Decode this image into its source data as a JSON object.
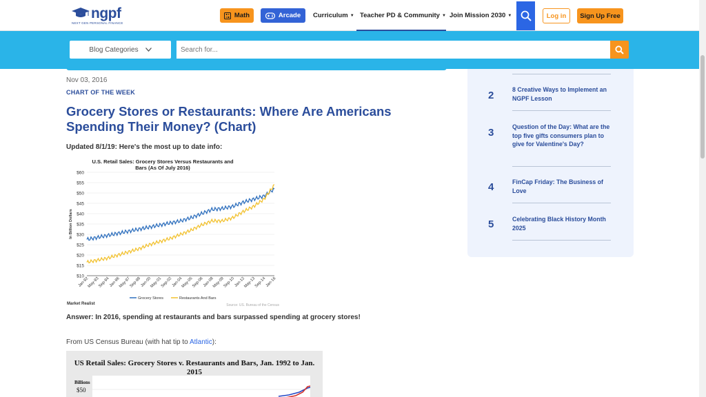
{
  "header": {
    "logo_text": "ngpf",
    "logo_tagline": "NEXT GEN PERSONAL FINANCE",
    "math_label": "Math",
    "arcade_label": "Arcade",
    "nav": [
      "Curriculum",
      "Teacher PD & Community",
      "Join Mission 2030"
    ],
    "login_label": "Log in",
    "signup_label": "Sign Up Free"
  },
  "searchbar": {
    "categories_label": "Blog Categories",
    "placeholder": "Search for..."
  },
  "article": {
    "date": "Nov 03, 2016",
    "category": "CHART OF THE WEEK",
    "title": "Grocery Stores or Restaurants: Where Are Americans Spending Their Money? (Chart)",
    "updated": "Updated 8/1/19: Here's the most up to date info:",
    "answer": "Answer: In 2016, spending at restaurants and bars surpassed spending at grocery stores!",
    "from_prefix": "From US Census Bureau (with hat tip to ",
    "from_link": "Atlantic",
    "from_suffix": "):"
  },
  "chart_data": [
    {
      "type": "line",
      "title": "U.S. Retail Sales: Grocery Stores Versus Restaurants and Bars (As Of July 2016)",
      "ylabel": "In Billion Dollars",
      "ylim": [
        10,
        60
      ],
      "y_ticks": [
        "$10",
        "$15",
        "$20",
        "$25",
        "$30",
        "$35",
        "$40",
        "$45",
        "$50",
        "$55",
        "$60"
      ],
      "x_ticks": [
        "Jan-92",
        "May-93",
        "Sep-94",
        "Jan-96",
        "May-97",
        "Sep-98",
        "Jan-00",
        "May-01",
        "Sep-02",
        "Jan-04",
        "May-05",
        "Sep-06",
        "Jan-08",
        "May-09",
        "Sep-10",
        "Jan-12",
        "May-13",
        "Sep-14",
        "Jan-16"
      ],
      "series": [
        {
          "name": "Grocery Stores",
          "color": "#2e6fbd",
          "values": [
            27.5,
            28.5,
            29.5,
            30.5,
            31.5,
            32.5,
            33.5,
            34.5,
            35.5,
            36.5,
            38,
            40,
            42,
            42.5,
            43.5,
            45.5,
            47,
            48.5,
            52
          ]
        },
        {
          "name": "Restaurants And Bars",
          "color": "#f2c12e",
          "values": [
            16.5,
            17.5,
            18.5,
            20,
            21.5,
            23,
            25,
            26.5,
            28,
            30,
            32,
            34.5,
            36.5,
            36.5,
            38,
            41,
            43.5,
            47,
            54
          ]
        }
      ],
      "source": "Source: US. Bureau of the Census",
      "brand": "Market Realist"
    },
    {
      "type": "line",
      "title": "US Retail Sales: Grocery Stores v. Restaurants and Bars, Jan. 1992 to Jan. 2015",
      "ylabel": "Billions",
      "y_ticks": [
        "$50"
      ]
    }
  ],
  "sidebar": {
    "items": [
      {
        "num": "2",
        "text": "8 Creative Ways to Implement an NGPF Lesson"
      },
      {
        "num": "3",
        "text": "Question of the Day: What are the top five gifts consumers plan to give for Valentine's Day?"
      },
      {
        "num": "4",
        "text": "FinCap Friday: The Business of Love"
      },
      {
        "num": "5",
        "text": "Celebrating Black History Month 2025"
      }
    ]
  },
  "colors": {
    "brand_blue": "#2b4d9b",
    "banner_blue": "#2ab4e8",
    "orange": "#f7941d",
    "button_blue": "#3363d6"
  }
}
